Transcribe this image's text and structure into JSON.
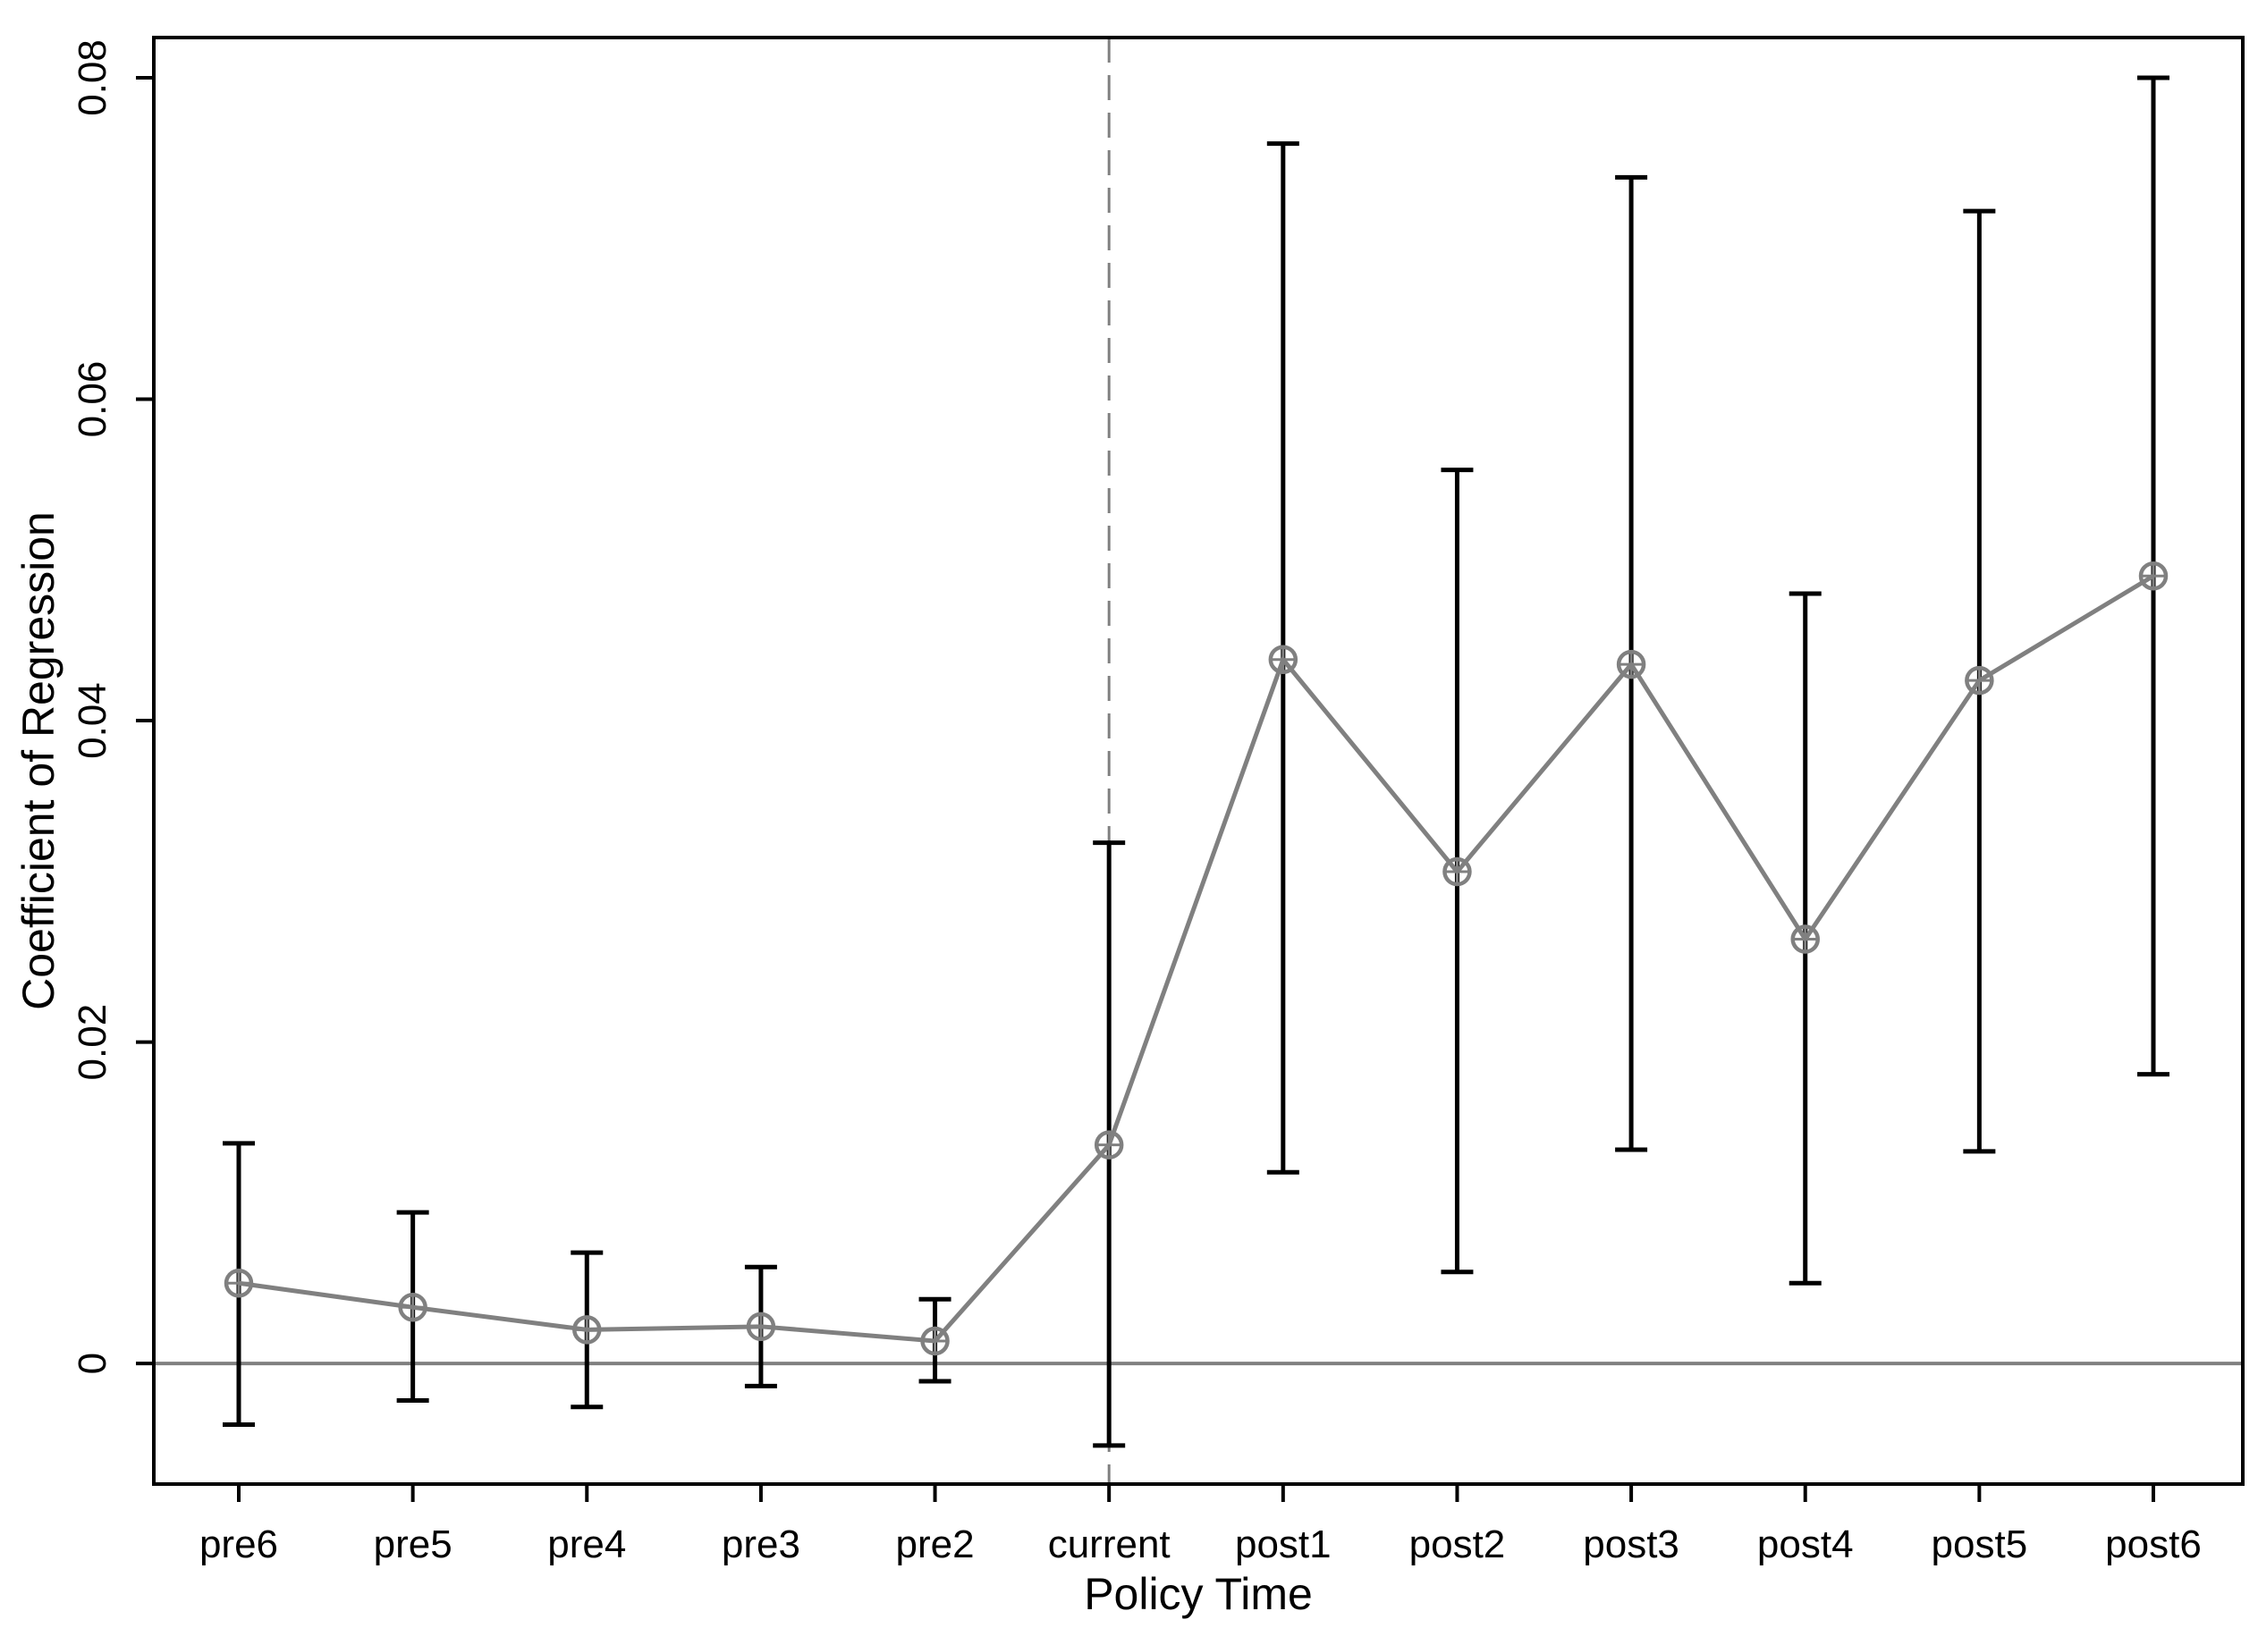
{
  "chart_data": {
    "type": "line",
    "title": "",
    "xlabel": "Policy Time",
    "ylabel": "Coefficient of Regression",
    "categories": [
      "pre6",
      "pre5",
      "pre4",
      "pre3",
      "pre2",
      "current",
      "post1",
      "post2",
      "post3",
      "post4",
      "post5",
      "post6"
    ],
    "series": [
      {
        "values": [
          0.005,
          0.0035,
          0.0021,
          0.0023,
          0.0014,
          0.0136,
          0.0438,
          0.0306,
          0.0435,
          0.0264,
          0.0425,
          0.049
        ],
        "ci_lower": [
          -0.0038,
          -0.0023,
          -0.0027,
          -0.0014,
          -0.0011,
          -0.0051,
          0.0119,
          0.0057,
          0.0133,
          0.005,
          0.0132,
          0.018
        ],
        "ci_upper": [
          0.0137,
          0.0094,
          0.0069,
          0.006,
          0.004,
          0.0324,
          0.0759,
          0.0556,
          0.0738,
          0.0479,
          0.0717,
          0.08
        ]
      }
    ],
    "ylim": [
      -0.0075,
      0.0825
    ],
    "yticks": [
      0,
      0.02,
      0.04,
      0.06,
      0.08
    ],
    "ytick_labels": [
      "0",
      "0.02",
      "0.04",
      "0.06",
      "0.08"
    ],
    "reference_hline": 0,
    "reference_vline_category": "current",
    "grid": false,
    "legend": "none",
    "colors": {
      "series_line": "#808080",
      "error_bars": "#000000",
      "reference_lines": "#808080",
      "frame": "#000000"
    }
  }
}
